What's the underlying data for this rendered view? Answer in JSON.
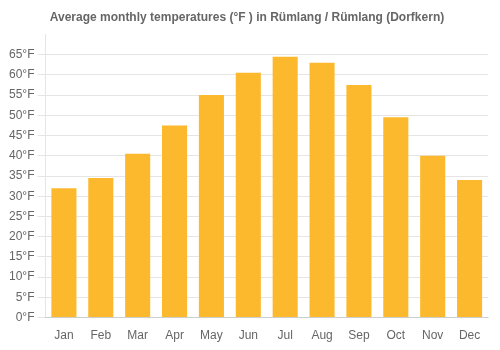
{
  "chart_data": {
    "type": "bar",
    "title": "Average monthly temperatures (°F ) in Rümlang / Rümlang (Dorfkern)",
    "categories": [
      "Jan",
      "Feb",
      "Mar",
      "Apr",
      "May",
      "Jun",
      "Jul",
      "Aug",
      "Sep",
      "Oct",
      "Nov",
      "Dec"
    ],
    "values": [
      32,
      34.5,
      40.5,
      47.5,
      55,
      60.5,
      64.5,
      63,
      57.5,
      49.5,
      40,
      34
    ],
    "color": "#FDB92E",
    "ylim": [
      0,
      70
    ],
    "yticks": [
      {
        "value": 0,
        "label": "0°F"
      },
      {
        "value": 5,
        "label": "5°F"
      },
      {
        "value": 10,
        "label": "10°F"
      },
      {
        "value": 15,
        "label": "15°F"
      },
      {
        "value": 20,
        "label": "20°F"
      },
      {
        "value": 25,
        "label": "25°F"
      },
      {
        "value": 30,
        "label": "30°F"
      },
      {
        "value": 35,
        "label": "35°F"
      },
      {
        "value": 40,
        "label": "40°F"
      },
      {
        "value": 45,
        "label": "45°F"
      },
      {
        "value": 50,
        "label": "50°F"
      },
      {
        "value": 55,
        "label": "55°F"
      },
      {
        "value": 60,
        "label": "60°F"
      },
      {
        "value": 65,
        "label": "65°F"
      }
    ],
    "grid": true
  }
}
